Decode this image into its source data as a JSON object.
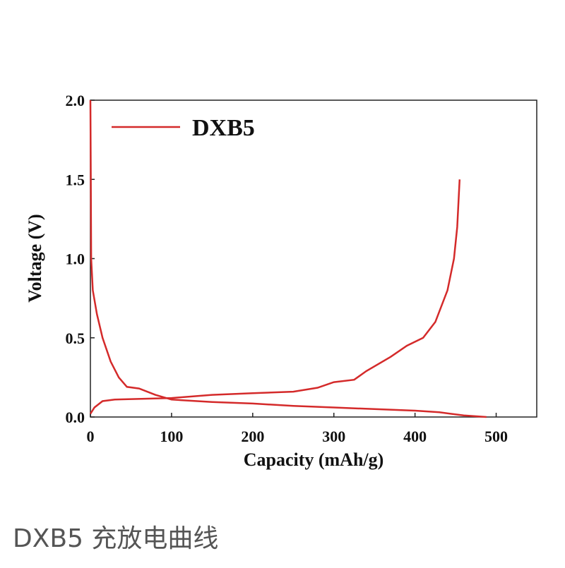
{
  "chart_data": {
    "type": "line",
    "xlabel": "Capacity (mAh/g)",
    "ylabel": "Voltage (V)",
    "xlim": [
      0,
      550
    ],
    "ylim": [
      0,
      2
    ],
    "xticks": [
      0,
      100,
      200,
      300,
      400,
      500
    ],
    "yticks": [
      {
        "value": 0,
        "label": "0.0"
      },
      0.5,
      {
        "value": 1,
        "label": "1.0"
      },
      1.5,
      {
        "value": 2,
        "label": "2.0"
      }
    ],
    "legend": "upper left",
    "series": [
      {
        "name": "DXB5",
        "color": "#d42a2a",
        "x": [
          0,
          0.5,
          1,
          3,
          8,
          15,
          25,
          35,
          45,
          60,
          80,
          100,
          150,
          200,
          250,
          300,
          350,
          400,
          430,
          460,
          488,
          null,
          0,
          5,
          15,
          30,
          100,
          150,
          200,
          250,
          280,
          300,
          325,
          340,
          370,
          390,
          410,
          425,
          440,
          448,
          452,
          455
        ],
        "values": [
          2.0,
          1.5,
          1.0,
          0.8,
          0.65,
          0.5,
          0.35,
          0.25,
          0.19,
          0.18,
          0.14,
          0.11,
          0.095,
          0.085,
          0.07,
          0.06,
          0.05,
          0.04,
          0.03,
          0.01,
          0.0,
          null,
          0.02,
          0.06,
          0.1,
          0.11,
          0.12,
          0.14,
          0.15,
          0.16,
          0.185,
          0.22,
          0.235,
          0.29,
          0.38,
          0.45,
          0.5,
          0.6,
          0.8,
          1.0,
          1.2,
          1.5
        ]
      }
    ]
  },
  "caption": "DXB5  充放电曲线"
}
